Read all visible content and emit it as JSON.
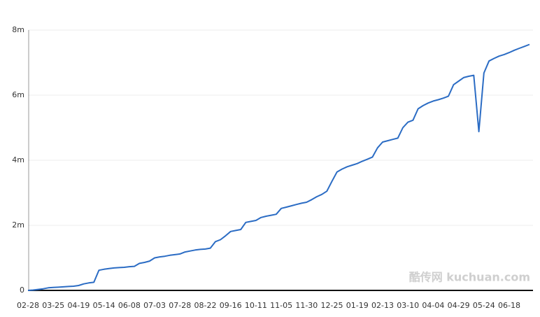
{
  "chart_data": {
    "type": "line",
    "categories": [
      "02-28",
      null,
      null,
      null,
      null,
      "03-25",
      null,
      null,
      null,
      null,
      "04-19",
      null,
      null,
      null,
      null,
      "05-14",
      null,
      null,
      null,
      null,
      "06-08",
      null,
      null,
      null,
      null,
      "07-03",
      null,
      null,
      null,
      null,
      "07-28",
      null,
      null,
      null,
      null,
      "08-22",
      null,
      null,
      null,
      null,
      "09-16",
      null,
      null,
      null,
      null,
      "10-11",
      null,
      null,
      null,
      null,
      "11-05",
      null,
      null,
      null,
      null,
      "11-30",
      null,
      null,
      null,
      null,
      "12-25",
      null,
      null,
      null,
      null,
      "01-19",
      null,
      null,
      null,
      null,
      "02-13",
      null,
      null,
      null,
      null,
      "03-10",
      null,
      null,
      null,
      null,
      "04-04",
      null,
      null,
      null,
      null,
      "04-29",
      null,
      null,
      null,
      null,
      "05-24",
      null,
      null,
      null,
      null,
      "06-18",
      null,
      null,
      null,
      null
    ],
    "values": [
      0,
      10000,
      30000,
      50000,
      80000,
      90000,
      100000,
      110000,
      120000,
      130000,
      150000,
      200000,
      230000,
      250000,
      620000,
      650000,
      670000,
      690000,
      700000,
      710000,
      730000,
      740000,
      830000,
      860000,
      900000,
      1000000,
      1030000,
      1050000,
      1080000,
      1100000,
      1120000,
      1180000,
      1210000,
      1240000,
      1260000,
      1270000,
      1300000,
      1500000,
      1560000,
      1680000,
      1810000,
      1840000,
      1870000,
      2090000,
      2120000,
      2150000,
      2240000,
      2280000,
      2310000,
      2340000,
      2520000,
      2560000,
      2600000,
      2640000,
      2680000,
      2710000,
      2790000,
      2880000,
      2950000,
      3050000,
      3350000,
      3640000,
      3730000,
      3800000,
      3850000,
      3900000,
      3970000,
      4030000,
      4100000,
      4380000,
      4560000,
      4600000,
      4640000,
      4680000,
      5000000,
      5170000,
      5230000,
      5580000,
      5680000,
      5760000,
      5820000,
      5860000,
      5910000,
      5970000,
      6320000,
      6430000,
      6540000,
      6580000,
      6610000,
      4880000,
      6680000,
      7050000,
      7130000,
      7200000,
      7250000,
      7310000,
      7380000,
      7440000,
      7500000,
      7560000
    ],
    "color": "#2b6cc4",
    "ylim": [
      0,
      8000000
    ],
    "yticks": [
      0,
      {
        "value": 2000000,
        "label": "2m"
      },
      {
        "value": 4000000,
        "label": "4m"
      },
      {
        "value": 6000000,
        "label": "6m"
      },
      {
        "value": 8000000,
        "label": "8m"
      }
    ],
    "grid": true,
    "watermark": "酷传网 kuchuan.com"
  }
}
